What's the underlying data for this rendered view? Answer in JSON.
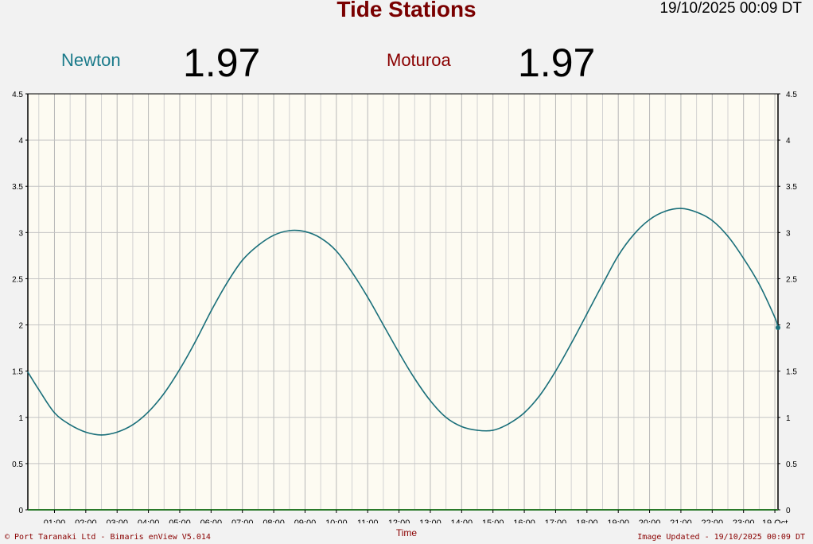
{
  "header": {
    "title": "Tide Stations",
    "timestamp": "19/10/2025 00:09 DT"
  },
  "stations": [
    {
      "name": "Newton",
      "value": "1.97",
      "color": "#1a7a8a"
    },
    {
      "name": "Moturoa",
      "value": "1.97",
      "color": "#8a0000"
    }
  ],
  "footer": {
    "left": "© Port Taranaki Ltd - Bimaris enView V5.014",
    "right": "Image Updated - 19/10/2025 00:09 DT"
  },
  "chart_data": {
    "type": "line",
    "xlabel": "Time",
    "x_tick_labels": [
      "01:00",
      "02:00",
      "03:00",
      "04:00",
      "05:00",
      "06:00",
      "07:00",
      "08:00",
      "09:00",
      "10:00",
      "11:00",
      "12:00",
      "13:00",
      "14:00",
      "15:00",
      "16:00",
      "17:00",
      "18:00",
      "19:00",
      "20:00",
      "21:00",
      "22:00",
      "23:00",
      "19 Oct"
    ],
    "y_tick_labels": [
      "0",
      "0.5",
      "1",
      "1.5",
      "2",
      "2.5",
      "3",
      "3.5",
      "4",
      "4.5"
    ],
    "ylim": [
      0,
      4.5
    ],
    "xlim_hours": [
      0.15,
      24.1
    ],
    "grid": true,
    "series": [
      {
        "name": "Newton",
        "color": "#1a6f7a",
        "x": [
          0.15,
          0.5,
          1.0,
          1.5,
          2.0,
          2.5,
          3.0,
          3.5,
          4.0,
          4.5,
          5.0,
          5.5,
          6.0,
          6.5,
          7.0,
          7.5,
          8.0,
          8.5,
          9.0,
          9.5,
          10.0,
          10.5,
          11.0,
          11.5,
          12.0,
          12.5,
          13.0,
          13.5,
          14.0,
          14.5,
          15.0,
          15.5,
          16.0,
          16.5,
          17.0,
          17.5,
          18.0,
          18.5,
          19.0,
          19.5,
          20.0,
          20.5,
          21.0,
          21.5,
          22.0,
          22.5,
          23.0,
          23.5,
          24.0,
          24.1
        ],
        "y": [
          1.49,
          1.3,
          1.05,
          0.92,
          0.84,
          0.81,
          0.84,
          0.92,
          1.06,
          1.26,
          1.52,
          1.82,
          2.15,
          2.45,
          2.7,
          2.86,
          2.97,
          3.02,
          3.01,
          2.94,
          2.8,
          2.57,
          2.3,
          2.0,
          1.7,
          1.42,
          1.18,
          1.0,
          0.9,
          0.86,
          0.86,
          0.93,
          1.05,
          1.24,
          1.5,
          1.8,
          2.12,
          2.44,
          2.75,
          2.98,
          3.14,
          3.23,
          3.26,
          3.22,
          3.13,
          2.96,
          2.72,
          2.44,
          2.08,
          1.97
        ]
      }
    ]
  }
}
